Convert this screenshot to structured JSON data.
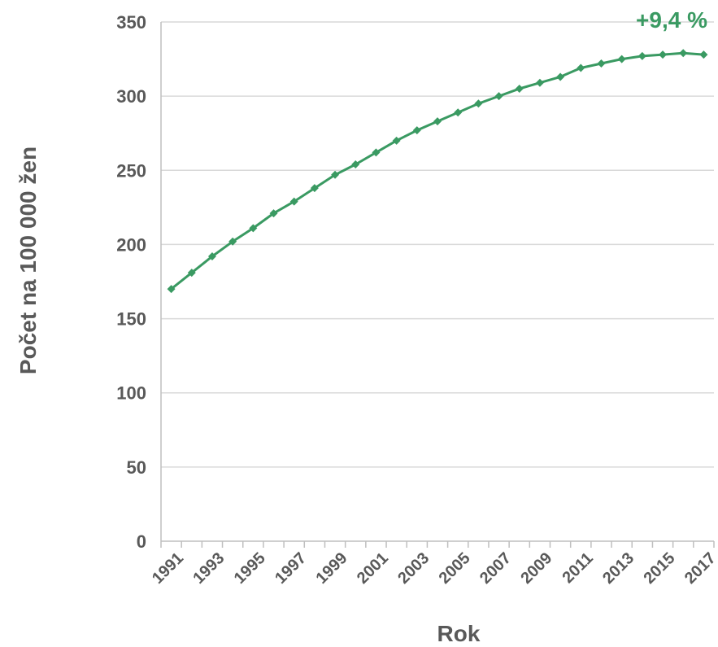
{
  "chart_data": {
    "type": "line",
    "xlabel": "Rok",
    "ylabel": "Počet na 100 000 žen",
    "ylim": [
      0,
      350
    ],
    "yticks": [
      0,
      50,
      100,
      150,
      200,
      250,
      300,
      350
    ],
    "x_tick_labels": [
      "1991",
      "1993",
      "1995",
      "1997",
      "1999",
      "2001",
      "2003",
      "2005",
      "2007",
      "2009",
      "2011",
      "2013",
      "2015",
      "2017"
    ],
    "grid": "horizontal",
    "annotation": "+9,4 %",
    "series_color": "#3a9a62",
    "series": [
      {
        "x": [
          1991,
          1992,
          1993,
          1994,
          1995,
          1996,
          1997,
          1998,
          1999,
          2000,
          2001,
          2002,
          2003,
          2004,
          2005,
          2006,
          2007,
          2008,
          2009,
          2010,
          2011,
          2012,
          2013,
          2014,
          2015,
          2016,
          2017
        ],
        "values": [
          170,
          181,
          192,
          202,
          211,
          221,
          229,
          238,
          247,
          254,
          262,
          270,
          277,
          283,
          289,
          295,
          300,
          305,
          309,
          313,
          319,
          322,
          325,
          327,
          328,
          329,
          328
        ]
      }
    ]
  }
}
